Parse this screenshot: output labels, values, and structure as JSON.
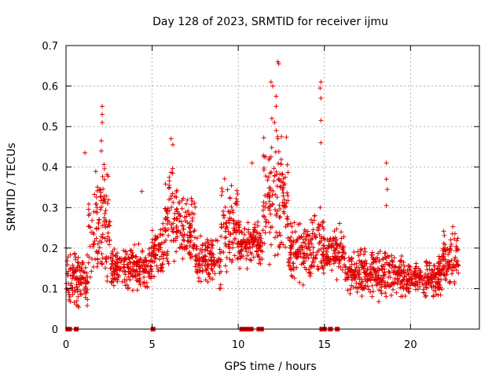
{
  "chart_data": {
    "type": "scatter",
    "title": "Day 128 of 2023, SRMTID for receiver ijmu",
    "xlabel": "GPS time / hours",
    "ylabel": "SRMTID / TECUs",
    "xlim": [
      0,
      24
    ],
    "ylim": [
      0,
      0.7
    ],
    "x_ticks": [
      0,
      5,
      10,
      15,
      20
    ],
    "x_tick_labels": [
      "0",
      "5",
      "10",
      "15",
      "20"
    ],
    "y_ticks": [
      0,
      0.1,
      0.2,
      0.3,
      0.4,
      0.5,
      0.6,
      0.7
    ],
    "y_tick_labels": [
      "0",
      "0.1",
      "0.2",
      "0.3",
      "0.4",
      "0.5",
      "0.6",
      "0.7"
    ],
    "grid": true,
    "marker": "+",
    "color": "#e00000",
    "baseline_y": 0.05,
    "x_end": 22.8,
    "activity_segments": [
      {
        "start": 0.0,
        "end": 1.3,
        "base": 0.12,
        "spread": 0.07
      },
      {
        "start": 1.3,
        "end": 2.6,
        "base": 0.26,
        "spread": 0.12
      },
      {
        "start": 2.6,
        "end": 5.0,
        "base": 0.15,
        "spread": 0.05
      },
      {
        "start": 5.0,
        "end": 5.7,
        "base": 0.19,
        "spread": 0.05
      },
      {
        "start": 5.7,
        "end": 6.6,
        "base": 0.28,
        "spread": 0.1
      },
      {
        "start": 6.6,
        "end": 7.5,
        "base": 0.24,
        "spread": 0.07
      },
      {
        "start": 7.5,
        "end": 9.0,
        "base": 0.17,
        "spread": 0.05
      },
      {
        "start": 9.0,
        "end": 10.1,
        "base": 0.25,
        "spread": 0.1
      },
      {
        "start": 10.1,
        "end": 11.4,
        "base": 0.21,
        "spread": 0.04
      },
      {
        "start": 11.4,
        "end": 12.9,
        "base": 0.33,
        "spread": 0.13
      },
      {
        "start": 12.9,
        "end": 14.0,
        "base": 0.19,
        "spread": 0.06
      },
      {
        "start": 14.0,
        "end": 15.0,
        "base": 0.21,
        "spread": 0.08
      },
      {
        "start": 15.0,
        "end": 16.2,
        "base": 0.19,
        "spread": 0.05
      },
      {
        "start": 16.2,
        "end": 19.0,
        "base": 0.14,
        "spread": 0.05
      },
      {
        "start": 19.0,
        "end": 21.8,
        "base": 0.13,
        "spread": 0.04
      },
      {
        "start": 21.8,
        "end": 22.8,
        "base": 0.18,
        "spread": 0.06
      }
    ],
    "spikes": [
      {
        "x": 2.1,
        "y": 0.55
      },
      {
        "x": 2.1,
        "y": 0.53
      },
      {
        "x": 2.1,
        "y": 0.51
      },
      {
        "x": 2.05,
        "y": 0.465
      },
      {
        "x": 2.05,
        "y": 0.44
      },
      {
        "x": 1.1,
        "y": 0.435
      },
      {
        "x": 6.1,
        "y": 0.47
      },
      {
        "x": 6.2,
        "y": 0.455
      },
      {
        "x": 4.4,
        "y": 0.34
      },
      {
        "x": 10.8,
        "y": 0.41
      },
      {
        "x": 12.3,
        "y": 0.66
      },
      {
        "x": 12.35,
        "y": 0.655
      },
      {
        "x": 11.9,
        "y": 0.61
      },
      {
        "x": 12.0,
        "y": 0.6
      },
      {
        "x": 12.2,
        "y": 0.575
      },
      {
        "x": 12.2,
        "y": 0.55
      },
      {
        "x": 11.95,
        "y": 0.52
      },
      {
        "x": 12.1,
        "y": 0.51
      },
      {
        "x": 12.2,
        "y": 0.49
      },
      {
        "x": 12.3,
        "y": 0.47
      },
      {
        "x": 14.8,
        "y": 0.61
      },
      {
        "x": 14.75,
        "y": 0.595
      },
      {
        "x": 14.8,
        "y": 0.57
      },
      {
        "x": 14.8,
        "y": 0.515
      },
      {
        "x": 14.8,
        "y": 0.46
      },
      {
        "x": 18.6,
        "y": 0.41
      },
      {
        "x": 18.6,
        "y": 0.37
      },
      {
        "x": 18.65,
        "y": 0.345
      },
      {
        "x": 18.6,
        "y": 0.305
      }
    ],
    "zero_value_x": [
      0.1,
      0.2,
      0.6,
      5.05,
      10.2,
      10.45,
      10.6,
      10.75,
      11.2,
      11.35,
      14.85,
      15.0,
      15.35,
      15.75
    ]
  }
}
